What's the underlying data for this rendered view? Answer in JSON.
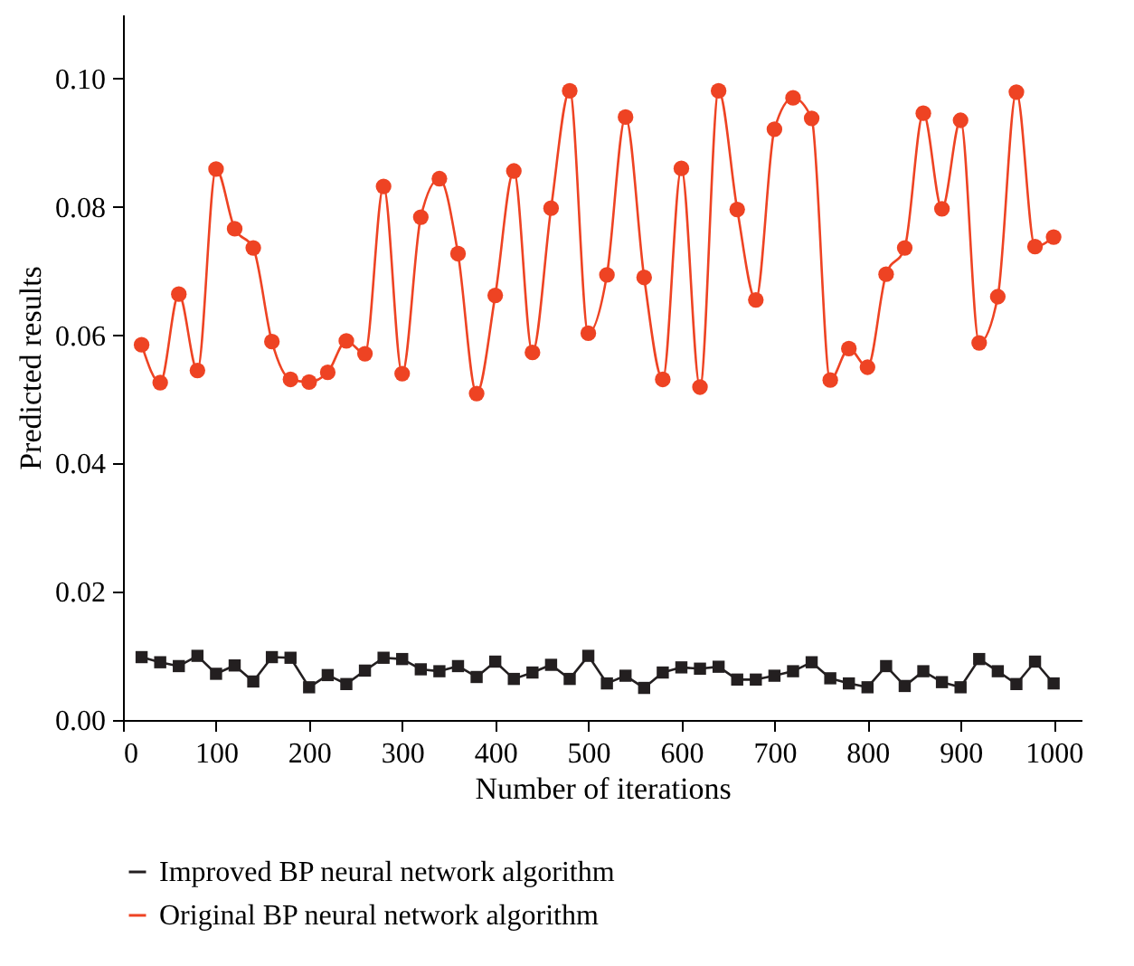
{
  "chart_data": {
    "type": "line",
    "xlabel": "Number of iterations",
    "ylabel": "Predicted results",
    "x": [
      20,
      40,
      60,
      80,
      100,
      120,
      140,
      160,
      180,
      200,
      220,
      240,
      260,
      280,
      300,
      320,
      340,
      360,
      380,
      400,
      420,
      440,
      460,
      480,
      500,
      520,
      540,
      560,
      580,
      600,
      620,
      640,
      660,
      680,
      700,
      720,
      740,
      760,
      780,
      800,
      820,
      840,
      860,
      880,
      900,
      920,
      940,
      960,
      980,
      1000
    ],
    "series": [
      {
        "name": "Improved BP neural network algorithm",
        "color": "#231f20",
        "marker": "square",
        "values": [
          0.0098,
          0.009,
          0.0084,
          0.01,
          0.0072,
          0.0085,
          0.006,
          0.0098,
          0.0097,
          0.0051,
          0.007,
          0.0056,
          0.0077,
          0.0097,
          0.0095,
          0.0079,
          0.0076,
          0.0084,
          0.0067,
          0.0091,
          0.0064,
          0.0074,
          0.0086,
          0.0064,
          0.01,
          0.0057,
          0.0069,
          0.005,
          0.0074,
          0.0082,
          0.008,
          0.0083,
          0.0063,
          0.0063,
          0.0069,
          0.0076,
          0.009,
          0.0065,
          0.0057,
          0.0051,
          0.0084,
          0.0053,
          0.0076,
          0.0059,
          0.0051,
          0.0095,
          0.0076,
          0.0056,
          0.0091,
          0.0057
        ]
      },
      {
        "name": "Original BP neural network algorithm",
        "color": "#ee4323",
        "marker": "circle",
        "values": [
          0.0585,
          0.0526,
          0.0664,
          0.0545,
          0.0859,
          0.0766,
          0.0736,
          0.059,
          0.0531,
          0.0527,
          0.0542,
          0.0591,
          0.0571,
          0.0832,
          0.054,
          0.0784,
          0.0844,
          0.0727,
          0.0509,
          0.0662,
          0.0856,
          0.0573,
          0.0798,
          0.0981,
          0.0603,
          0.0694,
          0.094,
          0.069,
          0.0531,
          0.086,
          0.0519,
          0.0981,
          0.0796,
          0.0655,
          0.0921,
          0.097,
          0.0938,
          0.053,
          0.0579,
          0.055,
          0.0695,
          0.0736,
          0.0946,
          0.0797,
          0.0935,
          0.0588,
          0.066,
          0.0979,
          0.0738,
          0.0753
        ]
      }
    ],
    "xlim": [
      0,
      1030
    ],
    "xticks": [
      0,
      100,
      200,
      300,
      400,
      500,
      600,
      700,
      800,
      900,
      1000
    ],
    "ylim": [
      0,
      0.11
    ],
    "yticks": [
      {
        "value": 0,
        "label": "0.00"
      },
      {
        "value": 0.02,
        "label": "0.02"
      },
      {
        "value": 0.04,
        "label": "0.04"
      },
      {
        "value": 0.06,
        "label": "0.06"
      },
      {
        "value": 0.08,
        "label": "0.08"
      },
      {
        "value": 0.1,
        "label": "0.10"
      }
    ],
    "grid": false,
    "legend": "bottom",
    "line_style": "solid"
  }
}
